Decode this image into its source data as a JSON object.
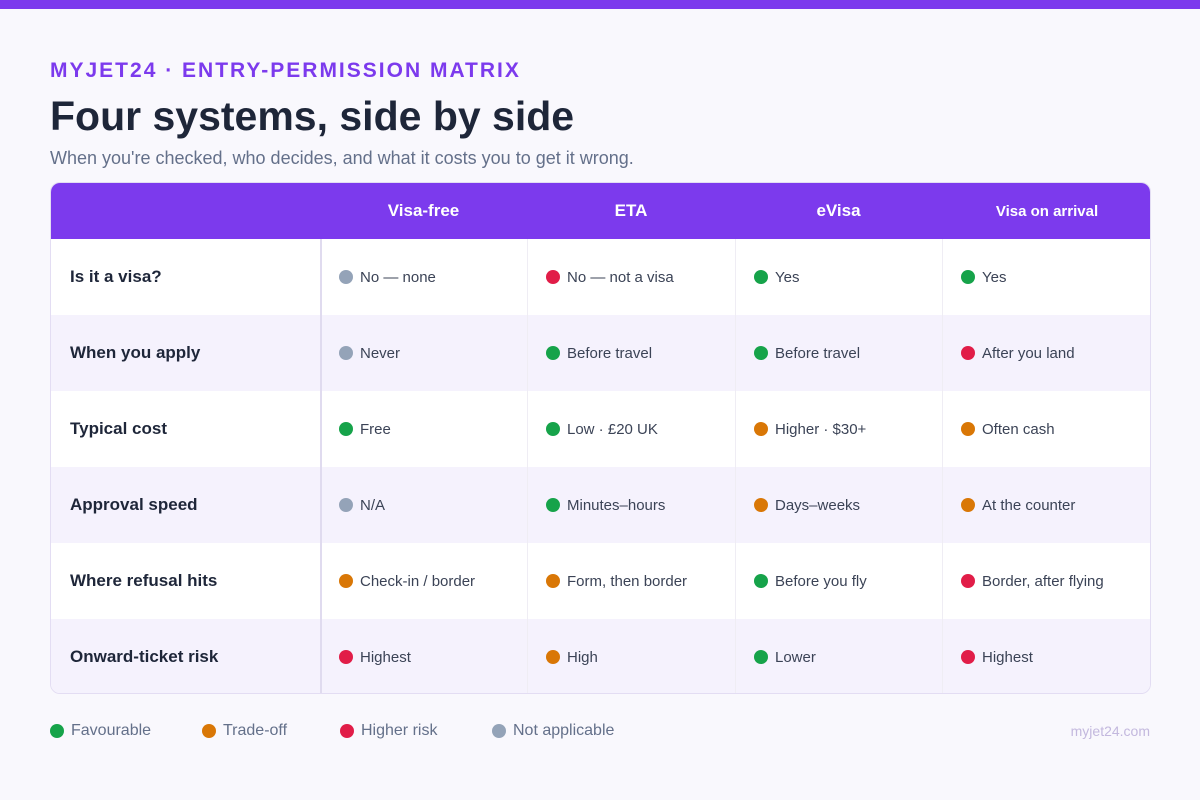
{
  "brand": {
    "kicker": "MYJET24 · ENTRY-PERMISSION MATRIX",
    "site": "myjet24.com",
    "accent": "#7c3aed"
  },
  "header": {
    "title": "Four systems, side by side",
    "subtitle": "When you're checked, who decides, and what it costs you to get it wrong."
  },
  "status_colors": {
    "favourable": "#16a34a",
    "tradeoff": "#d97706",
    "risk": "#e11d48",
    "na": "#94a3b8"
  },
  "columns": [
    "Visa-free",
    "ETA",
    "eVisa",
    "Visa on arrival"
  ],
  "rows": [
    {
      "label": "Is it a visa?",
      "cells": [
        {
          "text": "No — none",
          "status": "na"
        },
        {
          "text": "No — not a visa",
          "status": "risk"
        },
        {
          "text": "Yes",
          "status": "favourable"
        },
        {
          "text": "Yes",
          "status": "favourable"
        }
      ]
    },
    {
      "label": "When you apply",
      "cells": [
        {
          "text": "Never",
          "status": "na"
        },
        {
          "text": "Before travel",
          "status": "favourable"
        },
        {
          "text": "Before travel",
          "status": "favourable"
        },
        {
          "text": "After you land",
          "status": "risk"
        }
      ]
    },
    {
      "label": "Typical cost",
      "cells": [
        {
          "text": "Free",
          "status": "favourable"
        },
        {
          "text": "Low · £20 UK",
          "status": "favourable"
        },
        {
          "text": "Higher · $30+",
          "status": "tradeoff"
        },
        {
          "text": "Often cash",
          "status": "tradeoff"
        }
      ]
    },
    {
      "label": "Approval speed",
      "cells": [
        {
          "text": "N/A",
          "status": "na"
        },
        {
          "text": "Minutes–hours",
          "status": "favourable"
        },
        {
          "text": "Days–weeks",
          "status": "tradeoff"
        },
        {
          "text": "At the counter",
          "status": "tradeoff"
        }
      ]
    },
    {
      "label": "Where refusal hits",
      "cells": [
        {
          "text": "Check-in / border",
          "status": "tradeoff"
        },
        {
          "text": "Form, then border",
          "status": "tradeoff"
        },
        {
          "text": "Before you fly",
          "status": "favourable"
        },
        {
          "text": "Border, after flying",
          "status": "risk"
        }
      ]
    },
    {
      "label": "Onward-ticket risk",
      "cells": [
        {
          "text": "Highest",
          "status": "risk"
        },
        {
          "text": "High",
          "status": "tradeoff"
        },
        {
          "text": "Lower",
          "status": "favourable"
        },
        {
          "text": "Highest",
          "status": "risk"
        }
      ]
    }
  ],
  "legend": [
    {
      "label": "Favourable",
      "status": "favourable"
    },
    {
      "label": "Trade-off",
      "status": "tradeoff"
    },
    {
      "label": "Higher risk",
      "status": "risk"
    },
    {
      "label": "Not applicable",
      "status": "na"
    }
  ]
}
